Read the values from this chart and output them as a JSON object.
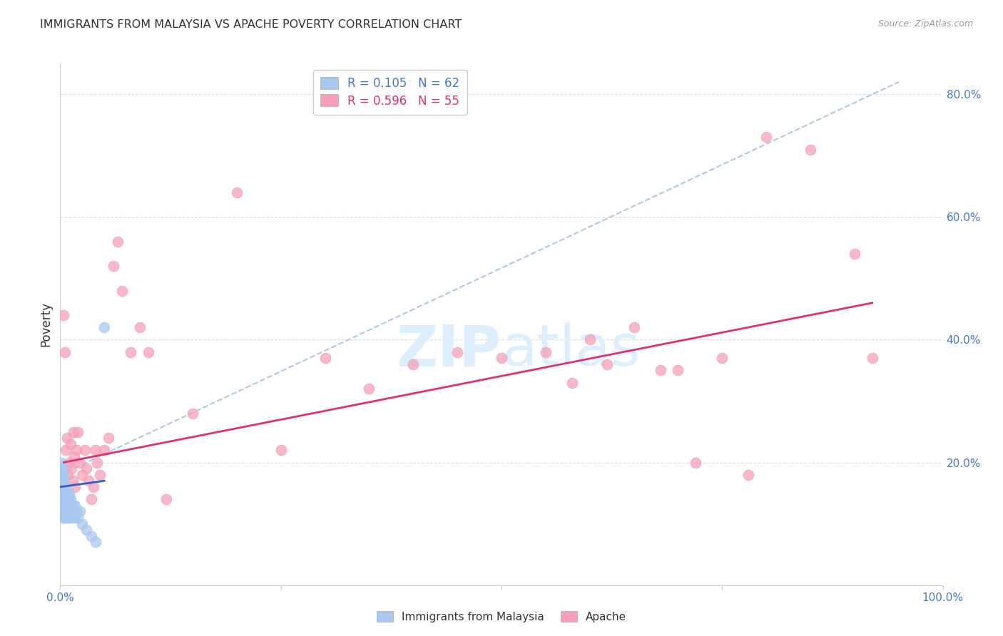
{
  "title": "IMMIGRANTS FROM MALAYSIA VS APACHE POVERTY CORRELATION CHART",
  "source": "Source: ZipAtlas.com",
  "ylabel": "Poverty",
  "xlim": [
    0,
    1.0
  ],
  "ylim": [
    0,
    0.85
  ],
  "ytick_positions": [
    0.0,
    0.2,
    0.4,
    0.6,
    0.8
  ],
  "yticklabels_right": [
    "",
    "20.0%",
    "40.0%",
    "60.0%",
    "80.0%"
  ],
  "legend_r1": "R = 0.105",
  "legend_n1": "N = 62",
  "legend_r2": "R = 0.596",
  "legend_n2": "N = 55",
  "blue_color": "#a8c8f0",
  "pink_color": "#f5a0b8",
  "blue_line_color": "#3060c0",
  "pink_line_color": "#e03070",
  "dashed_line_color": "#b0c8e0",
  "watermark_color": "#ddeeff",
  "background_color": "#ffffff",
  "grid_color": "#dddddd",
  "axis_label_color": "#4477cc",
  "title_color": "#333333",
  "blue_x": [
    0.001,
    0.001,
    0.001,
    0.001,
    0.001,
    0.002,
    0.002,
    0.002,
    0.002,
    0.002,
    0.002,
    0.003,
    0.003,
    0.003,
    0.003,
    0.003,
    0.003,
    0.004,
    0.004,
    0.004,
    0.004,
    0.004,
    0.004,
    0.005,
    0.005,
    0.005,
    0.005,
    0.005,
    0.006,
    0.006,
    0.006,
    0.006,
    0.007,
    0.007,
    0.007,
    0.007,
    0.008,
    0.008,
    0.008,
    0.009,
    0.009,
    0.009,
    0.01,
    0.01,
    0.01,
    0.011,
    0.011,
    0.012,
    0.012,
    0.013,
    0.014,
    0.015,
    0.016,
    0.017,
    0.018,
    0.02,
    0.022,
    0.025,
    0.03,
    0.035,
    0.04,
    0.05
  ],
  "blue_y": [
    0.15,
    0.17,
    0.18,
    0.19,
    0.2,
    0.12,
    0.14,
    0.15,
    0.16,
    0.17,
    0.19,
    0.11,
    0.13,
    0.14,
    0.15,
    0.16,
    0.18,
    0.12,
    0.13,
    0.14,
    0.15,
    0.16,
    0.17,
    0.11,
    0.12,
    0.14,
    0.15,
    0.16,
    0.12,
    0.13,
    0.15,
    0.16,
    0.11,
    0.13,
    0.14,
    0.15,
    0.12,
    0.13,
    0.14,
    0.11,
    0.13,
    0.15,
    0.12,
    0.14,
    0.15,
    0.11,
    0.13,
    0.12,
    0.14,
    0.11,
    0.13,
    0.12,
    0.11,
    0.13,
    0.12,
    0.11,
    0.12,
    0.1,
    0.09,
    0.08,
    0.07,
    0.42
  ],
  "pink_x": [
    0.004,
    0.005,
    0.006,
    0.008,
    0.009,
    0.01,
    0.012,
    0.013,
    0.014,
    0.015,
    0.016,
    0.017,
    0.018,
    0.02,
    0.022,
    0.025,
    0.028,
    0.03,
    0.032,
    0.035,
    0.038,
    0.04,
    0.042,
    0.045,
    0.05,
    0.055,
    0.06,
    0.065,
    0.07,
    0.08,
    0.09,
    0.1,
    0.12,
    0.15,
    0.2,
    0.25,
    0.3,
    0.35,
    0.4,
    0.45,
    0.5,
    0.55,
    0.6,
    0.65,
    0.7,
    0.75,
    0.8,
    0.85,
    0.9,
    0.92,
    0.58,
    0.62,
    0.68,
    0.72,
    0.78
  ],
  "pink_y": [
    0.44,
    0.38,
    0.22,
    0.24,
    0.18,
    0.2,
    0.23,
    0.19,
    0.17,
    0.25,
    0.21,
    0.16,
    0.22,
    0.25,
    0.2,
    0.18,
    0.22,
    0.19,
    0.17,
    0.14,
    0.16,
    0.22,
    0.2,
    0.18,
    0.22,
    0.24,
    0.52,
    0.56,
    0.48,
    0.38,
    0.42,
    0.38,
    0.14,
    0.28,
    0.64,
    0.22,
    0.37,
    0.32,
    0.36,
    0.38,
    0.37,
    0.38,
    0.4,
    0.42,
    0.35,
    0.37,
    0.73,
    0.71,
    0.54,
    0.37,
    0.33,
    0.36,
    0.35,
    0.2,
    0.18
  ],
  "blue_trend": [
    0.0,
    0.05,
    0.16,
    0.17
  ],
  "pink_trend": [
    0.004,
    0.92,
    0.2,
    0.46
  ],
  "dashed_trend": [
    0.0,
    0.95,
    0.18,
    0.82
  ]
}
